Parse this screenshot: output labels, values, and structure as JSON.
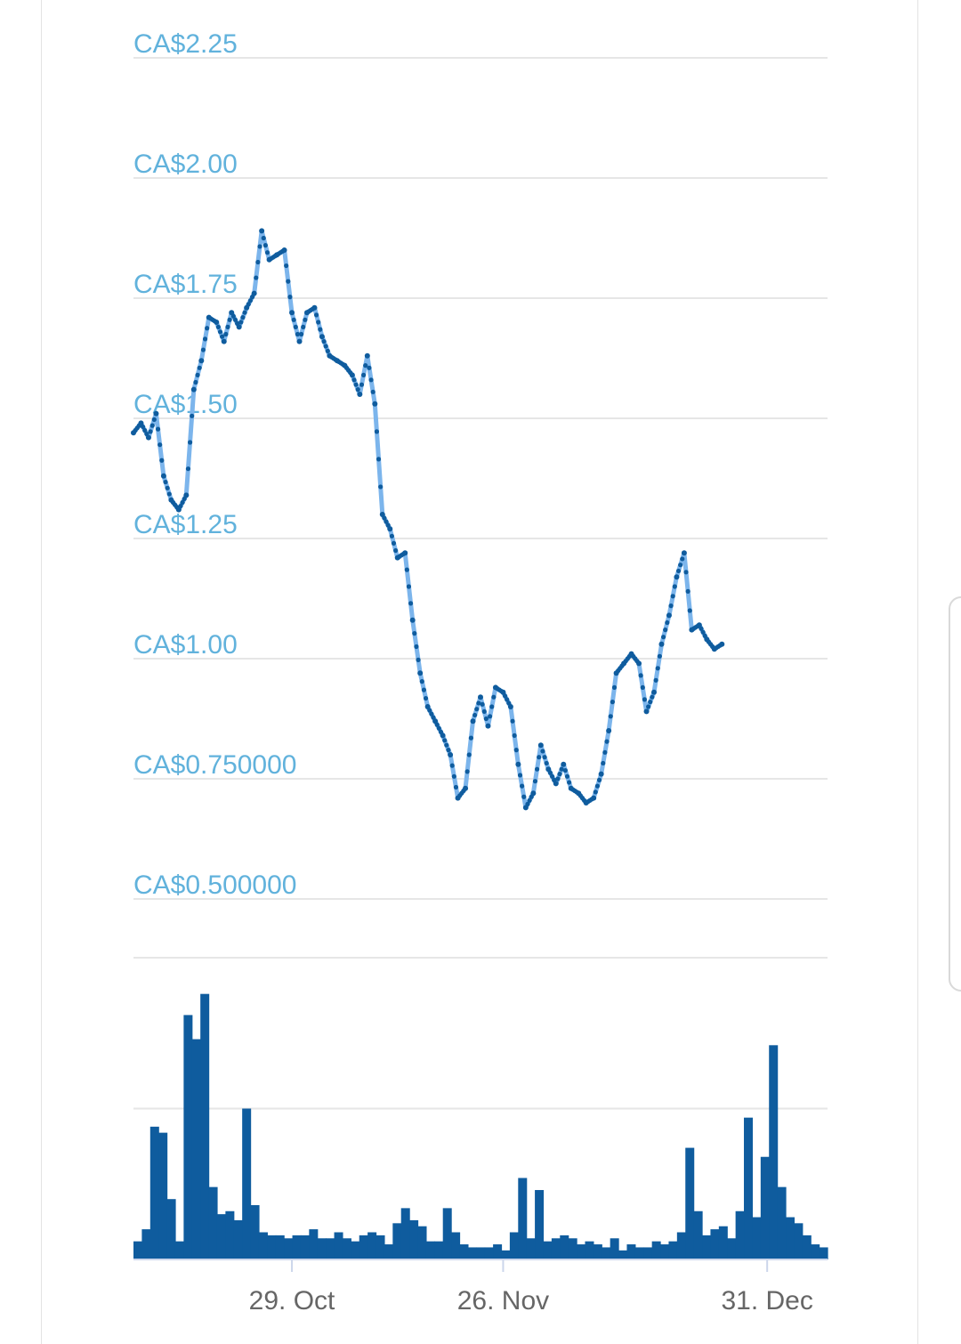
{
  "colors": {
    "price_line": "#7cb5ec",
    "price_marker": "#0f5c9e",
    "volume_bar": "#0f5c9e",
    "grid": "#e6e6e6",
    "y_label": "#61b2dc",
    "x_label": "#666666"
  },
  "chart_data": [
    {
      "type": "line",
      "ylim": [
        0.5,
        2.25
      ],
      "yticks": [
        {
          "value": 2.25,
          "label": "CA$2.25"
        },
        {
          "value": 2.0,
          "label": "CA$2.00"
        },
        {
          "value": 1.75,
          "label": "CA$1.75"
        },
        {
          "value": 1.5,
          "label": "CA$1.50"
        },
        {
          "value": 1.25,
          "label": "CA$1.25"
        },
        {
          "value": 1.0,
          "label": "CA$1.00"
        },
        {
          "value": 0.75,
          "label": "CA$0.750000"
        },
        {
          "value": 0.5,
          "label": "CA$0.500000"
        }
      ],
      "xlim": [
        "2018-10-08",
        "2019-01-08"
      ],
      "grid": true,
      "series": [
        {
          "points": [
            [
              "2018-10-08",
              1.47
            ],
            [
              "2018-10-09",
              1.49
            ],
            [
              "2018-10-10",
              1.46
            ],
            [
              "2018-10-11",
              1.51
            ],
            [
              "2018-10-12",
              1.38
            ],
            [
              "2018-10-13",
              1.33
            ],
            [
              "2018-10-14",
              1.31
            ],
            [
              "2018-10-15",
              1.34
            ],
            [
              "2018-10-16",
              1.56
            ],
            [
              "2018-10-17",
              1.62
            ],
            [
              "2018-10-18",
              1.71
            ],
            [
              "2018-10-19",
              1.7
            ],
            [
              "2018-10-20",
              1.66
            ],
            [
              "2018-10-21",
              1.72
            ],
            [
              "2018-10-22",
              1.69
            ],
            [
              "2018-10-23",
              1.73
            ],
            [
              "2018-10-24",
              1.76
            ],
            [
              "2018-10-25",
              1.89
            ],
            [
              "2018-10-26",
              1.83
            ],
            [
              "2018-10-27",
              1.84
            ],
            [
              "2018-10-28",
              1.85
            ],
            [
              "2018-10-29",
              1.72
            ],
            [
              "2018-10-30",
              1.66
            ],
            [
              "2018-10-31",
              1.72
            ],
            [
              "2018-11-01",
              1.73
            ],
            [
              "2018-11-02",
              1.67
            ],
            [
              "2018-11-03",
              1.63
            ],
            [
              "2018-11-04",
              1.62
            ],
            [
              "2018-11-05",
              1.61
            ],
            [
              "2018-11-06",
              1.59
            ],
            [
              "2018-11-07",
              1.55
            ],
            [
              "2018-11-08",
              1.63
            ],
            [
              "2018-11-09",
              1.53
            ],
            [
              "2018-11-10",
              1.3
            ],
            [
              "2018-11-11",
              1.27
            ],
            [
              "2018-11-12",
              1.21
            ],
            [
              "2018-11-13",
              1.22
            ],
            [
              "2018-11-14",
              1.08
            ],
            [
              "2018-11-15",
              0.97
            ],
            [
              "2018-11-16",
              0.9
            ],
            [
              "2018-11-17",
              0.87
            ],
            [
              "2018-11-18",
              0.84
            ],
            [
              "2018-11-19",
              0.8
            ],
            [
              "2018-11-20",
              0.71
            ],
            [
              "2018-11-21",
              0.73
            ],
            [
              "2018-11-22",
              0.87
            ],
            [
              "2018-11-23",
              0.92
            ],
            [
              "2018-11-24",
              0.86
            ],
            [
              "2018-11-25",
              0.94
            ],
            [
              "2018-11-26",
              0.93
            ],
            [
              "2018-11-27",
              0.9
            ],
            [
              "2018-11-28",
              0.78
            ],
            [
              "2018-11-29",
              0.69
            ],
            [
              "2018-11-30",
              0.72
            ],
            [
              "2018-12-01",
              0.82
            ],
            [
              "2018-12-02",
              0.77
            ],
            [
              "2018-12-03",
              0.74
            ],
            [
              "2018-12-04",
              0.78
            ],
            [
              "2018-12-05",
              0.73
            ],
            [
              "2018-12-06",
              0.72
            ],
            [
              "2018-12-07",
              0.7
            ],
            [
              "2018-12-08",
              0.71
            ],
            [
              "2018-12-09",
              0.76
            ],
            [
              "2018-12-10",
              0.85
            ],
            [
              "2018-12-11",
              0.97
            ],
            [
              "2018-12-12",
              0.99
            ],
            [
              "2018-12-13",
              1.01
            ],
            [
              "2018-12-14",
              0.99
            ],
            [
              "2018-12-15",
              0.89
            ],
            [
              "2018-12-16",
              0.93
            ],
            [
              "2018-12-17",
              1.03
            ],
            [
              "2018-12-18",
              1.09
            ],
            [
              "2018-12-19",
              1.17
            ],
            [
              "2018-12-20",
              1.22
            ],
            [
              "2018-12-21",
              1.06
            ],
            [
              "2018-12-22",
              1.07
            ],
            [
              "2018-12-23",
              1.04
            ],
            [
              "2018-12-24",
              1.02
            ],
            [
              "2018-12-25",
              1.03
            ]
          ]
        }
      ]
    },
    {
      "type": "bar",
      "ylim": [
        0,
        10
      ],
      "grid": true,
      "series": [
        {
          "values": [
            0.6,
            1.0,
            4.4,
            4.2,
            2.0,
            0.6,
            8.1,
            7.3,
            8.8,
            2.4,
            1.5,
            1.6,
            1.3,
            5.0,
            1.8,
            0.9,
            0.8,
            0.8,
            0.7,
            0.8,
            0.8,
            1.0,
            0.7,
            0.7,
            0.9,
            0.7,
            0.6,
            0.8,
            0.9,
            0.8,
            0.5,
            1.2,
            1.7,
            1.3,
            1.1,
            0.6,
            0.6,
            1.7,
            0.9,
            0.5,
            0.4,
            0.4,
            0.4,
            0.5,
            0.3,
            0.9,
            2.7,
            0.7,
            2.3,
            0.6,
            0.7,
            0.8,
            0.7,
            0.5,
            0.6,
            0.5,
            0.4,
            0.7,
            0.3,
            0.5,
            0.4,
            0.4,
            0.6,
            0.5,
            0.6,
            0.9,
            3.7,
            1.6,
            0.8,
            1.0,
            1.1,
            0.7,
            1.6,
            4.7,
            1.4,
            3.4,
            7.1,
            2.4,
            1.4,
            1.2,
            0.8,
            0.5,
            0.4
          ]
        }
      ],
      "xticks": [
        {
          "date": "2018-10-29",
          "label": "29. Oct"
        },
        {
          "date": "2018-11-26",
          "label": "26. Nov"
        },
        {
          "date": "2018-12-31",
          "label": "31. Dec"
        }
      ]
    }
  ]
}
